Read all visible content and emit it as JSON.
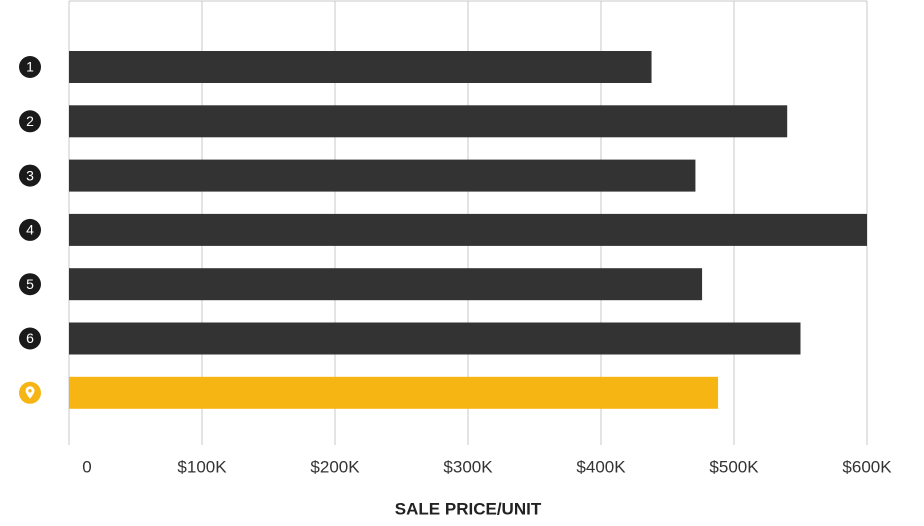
{
  "chart_data": {
    "type": "bar",
    "orientation": "horizontal",
    "categories": [
      "1",
      "2",
      "3",
      "4",
      "5",
      "6",
      null
    ],
    "values": [
      438000,
      540000,
      471000,
      600000,
      476000,
      550000,
      488000
    ],
    "colors": [
      "#333333",
      "#333333",
      "#333333",
      "#333333",
      "#333333",
      "#333333",
      "#f7b514"
    ],
    "xlabel": "SALE PRICE/UNIT",
    "xlim": [
      0,
      600000
    ],
    "xticks": [
      0,
      {
        "value": 100000,
        "label": "$100K"
      },
      {
        "value": 200000,
        "label": "$200K"
      },
      {
        "value": 300000,
        "label": "$300K"
      },
      {
        "value": 400000,
        "label": "$400K"
      },
      {
        "value": 500000,
        "label": "$500K"
      },
      {
        "value": 600000,
        "label": "$600K"
      }
    ],
    "grid": true
  }
}
